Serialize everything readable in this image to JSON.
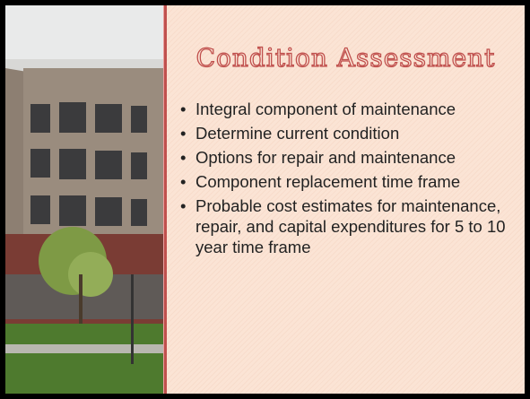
{
  "slide": {
    "title": "Condition Assessment",
    "bullets": [
      "Integral component of maintenance",
      "Determine current condition",
      "Options for repair and maintenance",
      "Component replacement time frame",
      "Probable cost estimates for maintenance, repair, and capital expenditures for 5 to 10 year time frame"
    ]
  }
}
